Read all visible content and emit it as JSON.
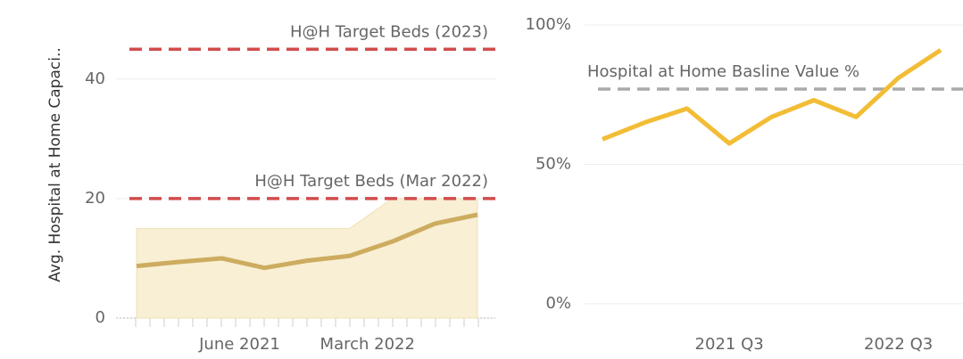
{
  "chart_data": [
    {
      "type": "line",
      "y_label": "Avg. Hospital at Home Capaci..",
      "categories": [
        null,
        null,
        "June 2021",
        null,
        null,
        "March 2022",
        null,
        null,
        null
      ],
      "series": [
        {
          "color": "#cdac5f",
          "values": [
            8.7,
            9.4,
            10,
            8.4,
            9.6,
            10.4,
            12.8,
            15.8,
            17.3
          ]
        }
      ],
      "band": {
        "color": "#f8efd4",
        "lower": [
          0,
          0,
          0,
          0,
          0,
          0,
          0,
          0,
          0
        ],
        "upper": [
          15,
          15,
          15,
          15,
          15,
          15,
          20,
          20,
          20
        ]
      },
      "reference_lines": [
        {
          "label": "H@H Target Beds (2023)",
          "value": 45,
          "color": "#d24b4b"
        },
        {
          "label": "H@H Target Beds (Mar 2022)",
          "value": 20,
          "color": "#d24b4b"
        }
      ],
      "ylim": [
        0,
        52.5
      ],
      "yticks": [
        0,
        20,
        40
      ],
      "grid": true
    },
    {
      "type": "line",
      "categories": [
        null,
        null,
        null,
        "2021 Q3",
        null,
        null,
        null,
        "2022 Q3",
        null
      ],
      "series": [
        {
          "color": "#f2bd35",
          "values": [
            59,
            65,
            70,
            57.5,
            67,
            73,
            67,
            81,
            91
          ]
        }
      ],
      "reference_lines": [
        {
          "label": "Hospital at Home Basline Value %",
          "value": 77,
          "color": "#aaaaaa"
        }
      ],
      "ylim": [
        0,
        100
      ],
      "yticks": [
        {
          "value": 0,
          "label": "0%"
        },
        {
          "value": 50,
          "label": "50%"
        },
        {
          "value": 100,
          "label": "100%"
        }
      ],
      "grid": true
    }
  ]
}
